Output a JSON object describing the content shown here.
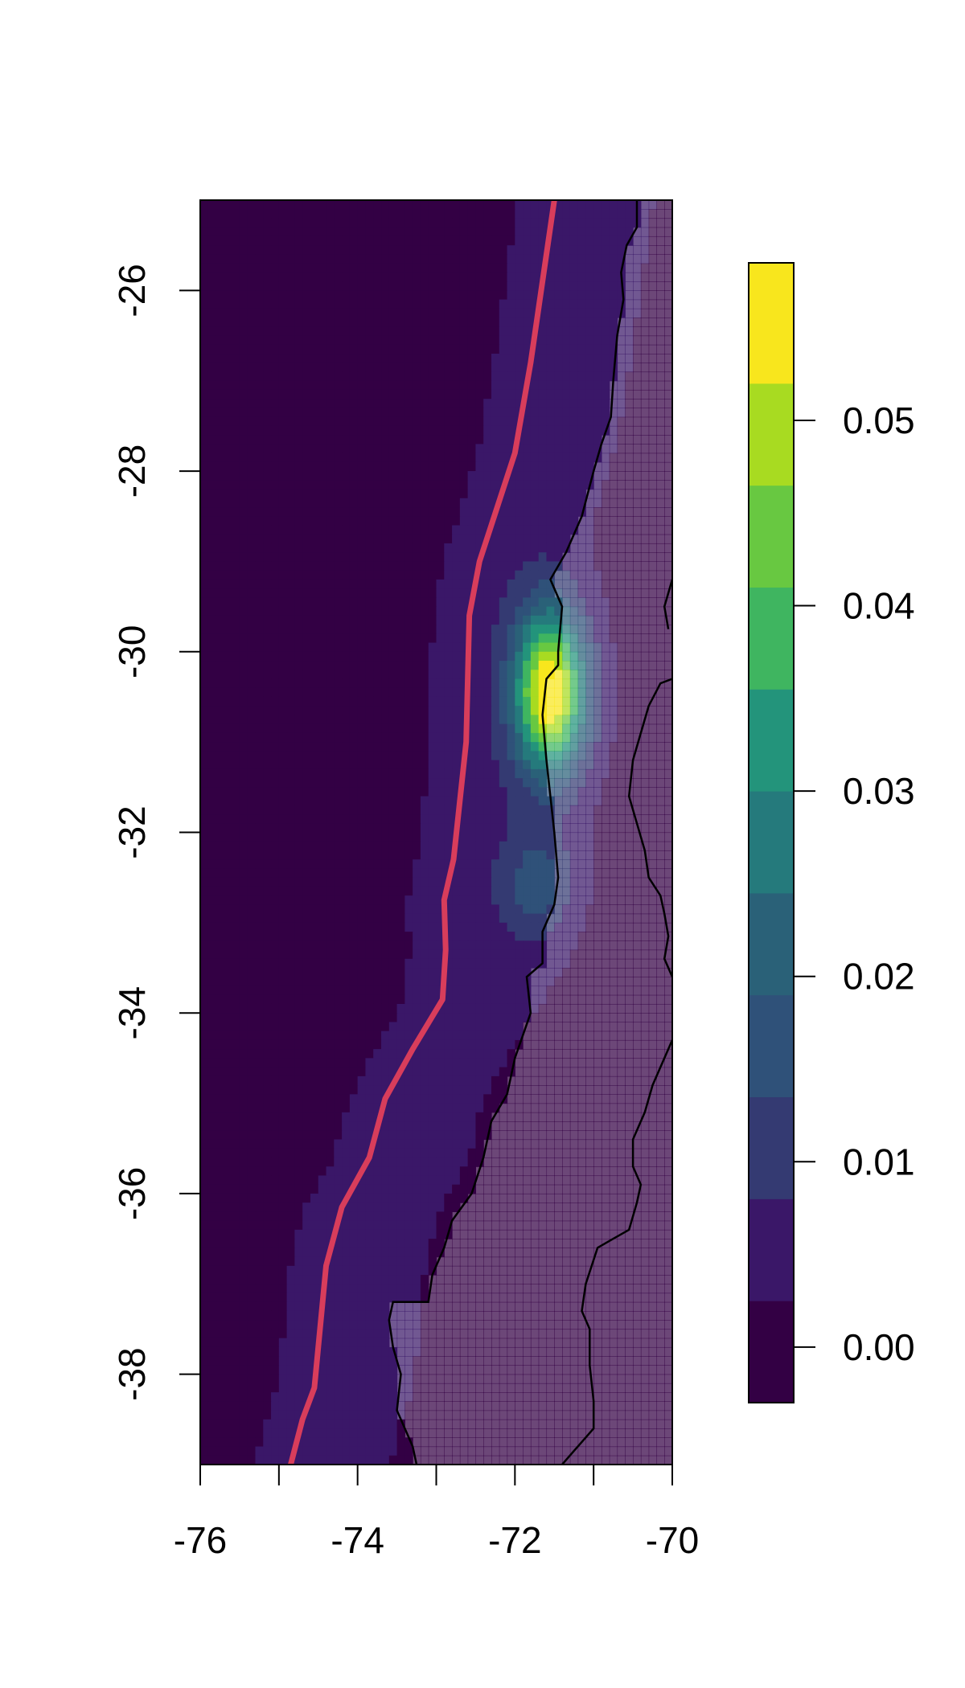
{
  "chart_data": {
    "type": "heatmap",
    "title": "",
    "xlabel": "",
    "ylabel": "",
    "xlim": [
      -76,
      -70
    ],
    "ylim": [
      -39,
      -25
    ],
    "x_ticks": [
      -76,
      -74,
      -72,
      -70
    ],
    "x_tick_labels": [
      "-76",
      "-74",
      "-72",
      "-70"
    ],
    "y_ticks": [
      -26,
      -28,
      -30,
      -32,
      -34,
      -36,
      -38
    ],
    "y_tick_labels": [
      "-26",
      "-28",
      "-30",
      "-32",
      "-34",
      "-36",
      "-38"
    ],
    "grid": false,
    "legend": "colorbar-right",
    "colorbar": {
      "range": [
        -0.003,
        0.0585
      ],
      "bins": [
        -0.003,
        0.0025,
        0.008,
        0.0135,
        0.019,
        0.0245,
        0.03,
        0.0355,
        0.041,
        0.0465,
        0.052,
        0.0585
      ],
      "colors": [
        "#330044",
        "#3a1768",
        "#343a72",
        "#2f5179",
        "#2a6178",
        "#257a7c",
        "#23947b",
        "#3fb560",
        "#68c841",
        "#a8db21",
        "#f8e61d"
      ],
      "ticks": [
        0.0,
        0.01,
        0.02,
        0.03,
        0.04,
        0.05
      ],
      "tick_labels": [
        "0.00",
        "0.01",
        "0.02",
        "0.03",
        "0.04",
        "0.05"
      ]
    },
    "field": {
      "ocean_value": 0.0,
      "trench_band_value": 0.005,
      "inland_value": 0.003,
      "peak": {
        "lon": -71.55,
        "lat": -30.45,
        "value": 0.057
      },
      "secondary": {
        "lon": -71.7,
        "lat": -32.6,
        "value": 0.014
      }
    },
    "trench_line": {
      "color": "#d83d5b",
      "points": [
        [
          -71.5,
          -25.0
        ],
        [
          -71.8,
          -26.8
        ],
        [
          -72.0,
          -27.8
        ],
        [
          -72.45,
          -29.0
        ],
        [
          -72.58,
          -29.6
        ],
        [
          -72.62,
          -31.0
        ],
        [
          -72.78,
          -32.3
        ],
        [
          -72.9,
          -32.75
        ],
        [
          -72.88,
          -33.3
        ],
        [
          -72.92,
          -33.85
        ],
        [
          -73.3,
          -34.4
        ],
        [
          -73.65,
          -34.95
        ],
        [
          -73.85,
          -35.6
        ],
        [
          -74.2,
          -36.15
        ],
        [
          -74.4,
          -36.8
        ],
        [
          -74.55,
          -38.15
        ],
        [
          -74.7,
          -38.5
        ],
        [
          -74.85,
          -39.0
        ]
      ]
    },
    "coastline": {
      "color": "#000000",
      "points": [
        [
          -70.45,
          -25.0
        ],
        [
          -70.45,
          -25.3
        ],
        [
          -70.58,
          -25.5
        ],
        [
          -70.65,
          -25.8
        ],
        [
          -70.62,
          -26.1
        ],
        [
          -70.7,
          -26.5
        ],
        [
          -70.75,
          -27.0
        ],
        [
          -70.78,
          -27.4
        ],
        [
          -70.9,
          -27.7
        ],
        [
          -71.0,
          -28.0
        ],
        [
          -71.15,
          -28.5
        ],
        [
          -71.35,
          -28.9
        ],
        [
          -71.55,
          -29.2
        ],
        [
          -71.4,
          -29.5
        ],
        [
          -71.45,
          -30.0
        ],
        [
          -71.45,
          -30.15
        ],
        [
          -71.6,
          -30.3
        ],
        [
          -71.65,
          -30.7
        ],
        [
          -71.6,
          -31.2
        ],
        [
          -71.55,
          -31.6
        ],
        [
          -71.5,
          -32.0
        ],
        [
          -71.45,
          -32.5
        ],
        [
          -71.5,
          -32.8
        ],
        [
          -71.65,
          -33.1
        ],
        [
          -71.65,
          -33.45
        ],
        [
          -71.85,
          -33.6
        ],
        [
          -71.8,
          -34.0
        ],
        [
          -72.0,
          -34.5
        ],
        [
          -72.1,
          -34.9
        ],
        [
          -72.3,
          -35.2
        ],
        [
          -72.4,
          -35.6
        ],
        [
          -72.55,
          -36.0
        ],
        [
          -72.8,
          -36.3
        ],
        [
          -72.9,
          -36.6
        ],
        [
          -73.05,
          -36.9
        ],
        [
          -73.1,
          -37.2
        ],
        [
          -73.3,
          -37.2
        ],
        [
          -73.55,
          -37.2
        ],
        [
          -73.6,
          -37.4
        ],
        [
          -73.55,
          -37.7
        ],
        [
          -73.45,
          -38.0
        ],
        [
          -73.5,
          -38.4
        ],
        [
          -73.3,
          -38.8
        ],
        [
          -73.25,
          -39.0
        ]
      ]
    },
    "border": {
      "color": "#000000",
      "segments": [
        [
          [
            -70.0,
            -29.2
          ],
          [
            -70.1,
            -29.5
          ],
          [
            -70.05,
            -29.75
          ]
        ],
        [
          [
            -70.0,
            -30.3
          ],
          [
            -70.15,
            -30.35
          ],
          [
            -70.3,
            -30.6
          ],
          [
            -70.4,
            -30.9
          ],
          [
            -70.5,
            -31.2
          ],
          [
            -70.55,
            -31.6
          ],
          [
            -70.45,
            -31.9
          ],
          [
            -70.35,
            -32.2
          ],
          [
            -70.3,
            -32.5
          ],
          [
            -70.15,
            -32.7
          ],
          [
            -70.1,
            -32.9
          ],
          [
            -70.05,
            -33.15
          ],
          [
            -70.1,
            -33.4
          ],
          [
            -70.0,
            -33.6
          ]
        ],
        [
          [
            -70.0,
            -34.3
          ],
          [
            -70.1,
            -34.5
          ],
          [
            -70.25,
            -34.8
          ],
          [
            -70.35,
            -35.1
          ],
          [
            -70.5,
            -35.4
          ],
          [
            -70.5,
            -35.7
          ],
          [
            -70.4,
            -35.9
          ],
          [
            -70.45,
            -36.1
          ],
          [
            -70.55,
            -36.4
          ],
          [
            -70.75,
            -36.5
          ],
          [
            -70.95,
            -36.6
          ],
          [
            -71.1,
            -37.0
          ],
          [
            -71.15,
            -37.3
          ],
          [
            -71.05,
            -37.5
          ],
          [
            -71.05,
            -37.9
          ],
          [
            -71.0,
            -38.3
          ],
          [
            -71.0,
            -38.6
          ],
          [
            -71.15,
            -38.75
          ],
          [
            -71.25,
            -38.85
          ],
          [
            -71.4,
            -39.0
          ]
        ]
      ]
    }
  }
}
